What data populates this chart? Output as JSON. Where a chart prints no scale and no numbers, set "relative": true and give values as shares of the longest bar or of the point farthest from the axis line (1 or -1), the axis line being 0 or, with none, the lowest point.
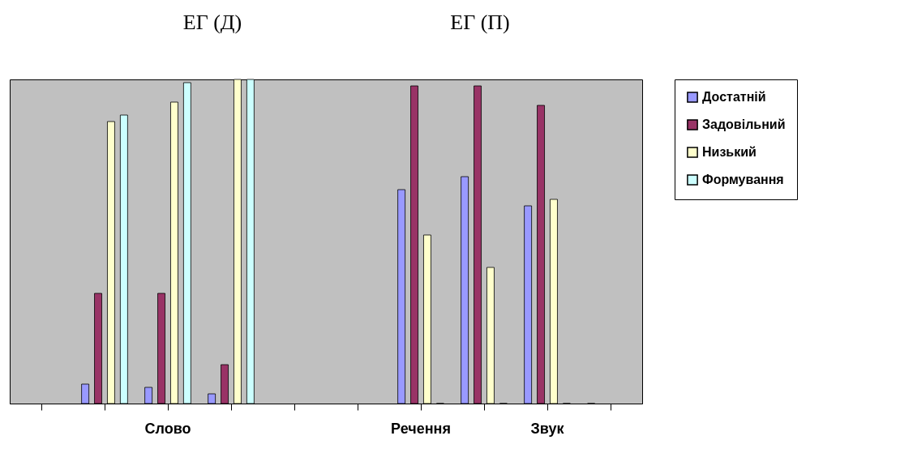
{
  "chart_data": {
    "type": "bar",
    "title": "ЕГ (Д)",
    "subtitle": "ЕГ (П)",
    "relative": true,
    "categories": [
      null,
      null,
      "Слово",
      null,
      null,
      null,
      "Речення",
      null,
      "Звук",
      null
    ],
    "series": [
      {
        "name": "Достатній",
        "color": "#9999ff",
        "values": [
          null,
          0.06,
          0.05,
          0.03,
          null,
          null,
          0.66,
          0.7,
          0.61,
          0
        ]
      },
      {
        "name": "Задовільний",
        "color": "#993366",
        "values": [
          null,
          0.34,
          0.34,
          0.12,
          null,
          null,
          0.98,
          0.98,
          0.92,
          null
        ]
      },
      {
        "name": "Низький",
        "color": "#ffffcc",
        "values": [
          null,
          0.87,
          0.93,
          1,
          null,
          null,
          0.52,
          0.42,
          0.63,
          null
        ]
      },
      {
        "name": "Формування",
        "color": "#ccffff",
        "values": [
          null,
          0.89,
          0.99,
          1,
          null,
          null,
          0,
          0,
          0,
          null
        ]
      }
    ],
    "legend": "right",
    "grid": false
  }
}
